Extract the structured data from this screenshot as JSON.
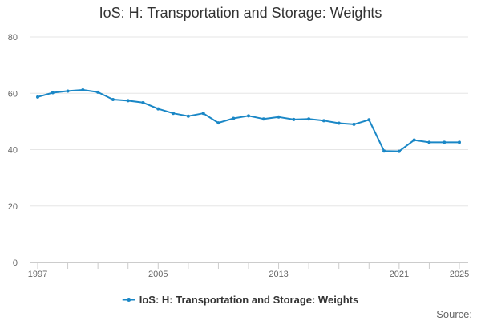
{
  "chart_data": {
    "type": "line",
    "title": "IoS: H: Transportation and Storage: Weights",
    "xlabel": "",
    "ylabel": "",
    "x": [
      1997,
      1998,
      1999,
      2000,
      2001,
      2002,
      2003,
      2004,
      2005,
      2006,
      2007,
      2008,
      2009,
      2010,
      2011,
      2012,
      2013,
      2014,
      2015,
      2016,
      2017,
      2018,
      2019,
      2020,
      2021,
      2022,
      2023,
      2024,
      2025
    ],
    "series": [
      {
        "name": "IoS: H: Transportation and Storage: Weights",
        "values": [
          58.7,
          60.2,
          60.8,
          61.2,
          60.4,
          57.8,
          57.4,
          56.7,
          54.5,
          52.9,
          51.9,
          52.9,
          49.5,
          51.1,
          52.0,
          50.9,
          51.6,
          50.7,
          50.9,
          50.3,
          49.4,
          49.0,
          50.6,
          39.5,
          39.4,
          43.4,
          42.6,
          42.6,
          42.6
        ]
      }
    ],
    "xlim": [
      1997,
      2025
    ],
    "ylim": [
      0,
      80
    ],
    "y_ticks": [
      0,
      20,
      40,
      60,
      80
    ],
    "x_tick_labels": [
      "1997",
      "2005",
      "2013",
      "2021",
      "2025"
    ],
    "grid": true,
    "legend_position": "bottom",
    "colors": {
      "series": "#1a87c6",
      "grid": "#e6e6e6",
      "axis": "#cccccc"
    }
  },
  "source_label": "Source:"
}
